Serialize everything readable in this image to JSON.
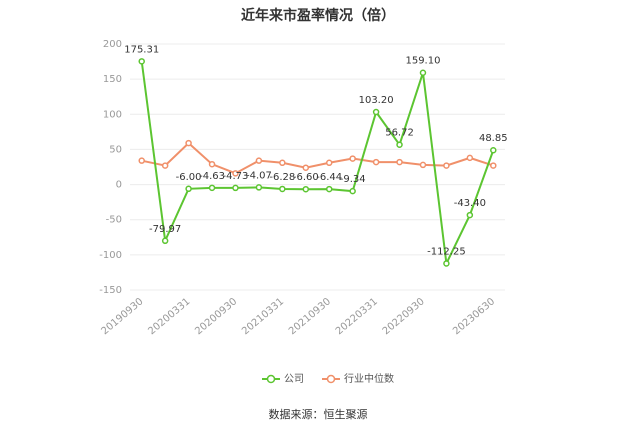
{
  "chart_data": {
    "type": "line",
    "title": "近年来市盈率情况（倍）",
    "categories": [
      "20190930",
      null,
      "20200331",
      null,
      "20200930",
      null,
      "20210331",
      null,
      "20210930",
      null,
      "20220331",
      null,
      "20220930",
      null,
      null,
      "20230630"
    ],
    "series": [
      {
        "name": "公司",
        "color": "#5cc531",
        "values": [
          175.31,
          -79.97,
          -6,
          -4.63,
          -4.73,
          -4.07,
          -6.28,
          -6.6,
          -6.44,
          -9.34,
          103.2,
          56.72,
          159.1,
          -112.25,
          -43.4,
          48.85
        ],
        "value_labels": [
          "175.31",
          "-79.97",
          "-6.00",
          "-4.63",
          "-4.73",
          "-4.07",
          "-6.28",
          "-6.60",
          "-6.44",
          "-9.34",
          "103.20",
          "56.72",
          "159.10",
          "-112.25",
          "-43.40",
          "48.85"
        ]
      },
      {
        "name": "行业中位数",
        "color": "#f0906a",
        "values": [
          34,
          27,
          59,
          29,
          16,
          34,
          31,
          24,
          31,
          37,
          32,
          32,
          28,
          27,
          38,
          27
        ]
      }
    ],
    "ylim": [
      -150,
      200
    ],
    "yticks": [
      -150,
      -100,
      -50,
      0,
      50,
      100,
      150,
      200
    ],
    "grid": true,
    "source": "数据来源：恒生聚源"
  }
}
